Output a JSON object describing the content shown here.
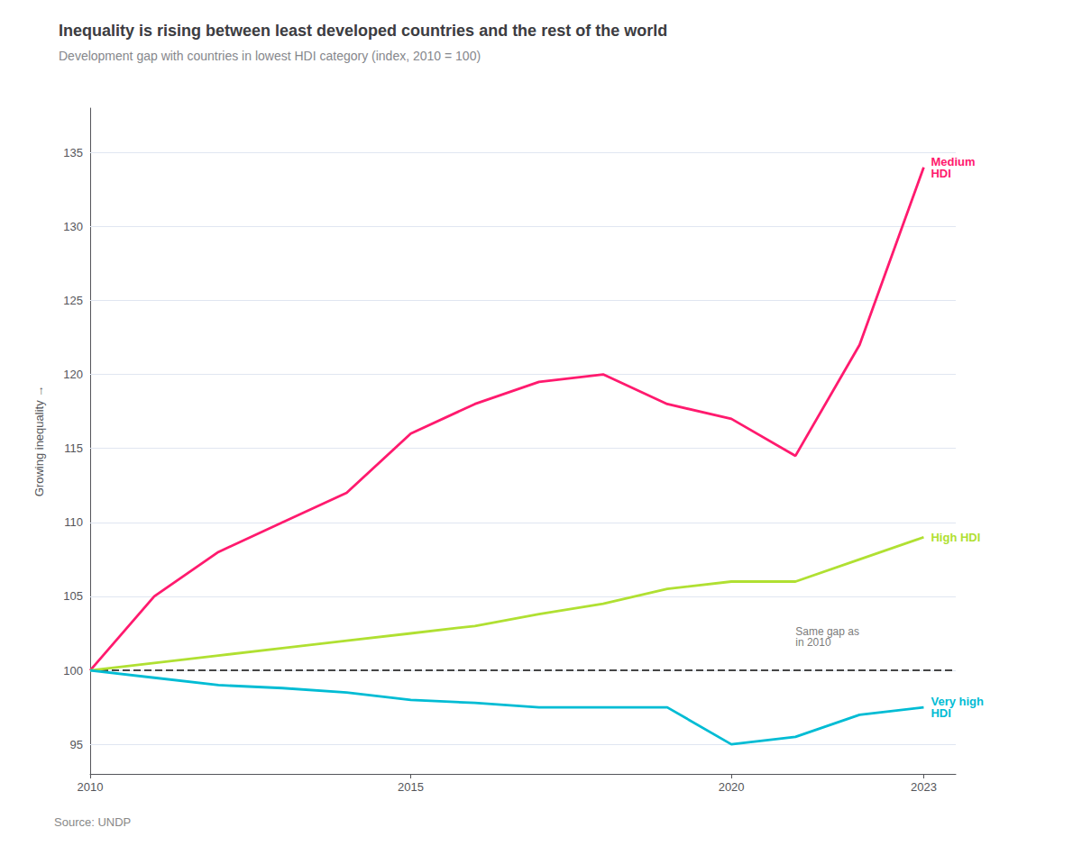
{
  "chart_data": {
    "type": "line",
    "title": "Inequality is rising between least developed countries and the rest of the world",
    "subtitle": "Development gap with countries in lowest HDI category (index, 2010 = 100)",
    "source": "Source: UNDP",
    "y_label": "Growing inequality →",
    "x": [
      2010,
      2011,
      2012,
      2013,
      2014,
      2015,
      2016,
      2017,
      2018,
      2019,
      2020,
      2021,
      2022,
      2023
    ],
    "series": [
      {
        "name": "Medium\nHDI",
        "color": "#ff1a6e",
        "values": [
          100,
          105,
          108,
          110,
          112,
          116,
          118,
          119.5,
          120,
          118,
          117,
          114.5,
          122,
          134
        ]
      },
      {
        "name": "High HDI",
        "color": "#b0e032",
        "values": [
          100,
          100.5,
          101,
          101.5,
          102,
          102.5,
          103,
          103.8,
          104.5,
          105.5,
          106,
          106,
          107.5,
          109
        ]
      },
      {
        "name": "Very high\nHDI",
        "color": "#00bcd4",
        "values": [
          100,
          99.5,
          99,
          98.8,
          98.5,
          98,
          97.8,
          97.5,
          97.5,
          97.5,
          95,
          95.5,
          97,
          97.5
        ]
      }
    ],
    "xlim": [
      2010,
      2023.5
    ],
    "xticks": [
      2010,
      2015,
      2020,
      2023
    ],
    "ylim": [
      93,
      138
    ],
    "yticks": [
      95,
      100,
      105,
      110,
      115,
      120,
      125,
      130,
      135
    ],
    "grid": true,
    "reference_line": {
      "value": 100,
      "line_style": "dashed"
    },
    "annotations": [
      {
        "text": "Same gap as\nin 2010",
        "x": 2021,
        "y": 101.5
      }
    ]
  }
}
